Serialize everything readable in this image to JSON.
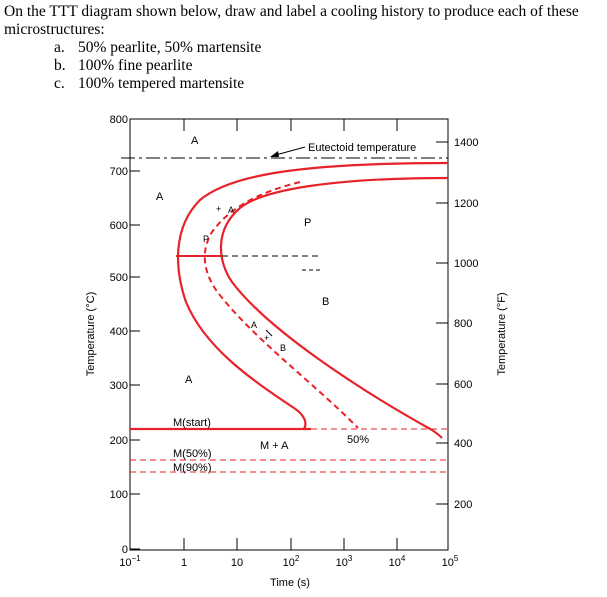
{
  "question": {
    "line1": "On the TTT diagram shown below, draw and label a cooling history to produce each of these",
    "line2": "microstructures:",
    "items": [
      {
        "label": "a.",
        "text": "50% pearlite, 50% martensite"
      },
      {
        "label": "b.",
        "text": "100% fine pearlite"
      },
      {
        "label": "c.",
        "text": "100% tempered martensite"
      }
    ]
  },
  "diagram": {
    "y_left_label": "Temperature (°C)",
    "y_right_label": "Temperature (°F)",
    "x_label": "Time (s)",
    "y_left_ticks": [
      "0",
      "100",
      "200",
      "300",
      "400",
      "500",
      "600",
      "700",
      "800"
    ],
    "y_right_ticks": [
      "200",
      "400",
      "600",
      "800",
      "1000",
      "1200",
      "1400"
    ],
    "x_ticks": [
      {
        "base": "10",
        "exp": "−1"
      },
      {
        "base": "1",
        "exp": ""
      },
      {
        "base": "10",
        "exp": ""
      },
      {
        "base": "10",
        "exp": "2"
      },
      {
        "base": "10",
        "exp": "3"
      },
      {
        "base": "10",
        "exp": "4"
      },
      {
        "base": "10",
        "exp": "5"
      }
    ],
    "labels": {
      "eutectoid": "Eutectoid temperature",
      "A_top": "A",
      "A_left": "A",
      "A_mid": "A",
      "A_dash_top": "A",
      "A_dash_mid": "A",
      "P_dash": "P",
      "P_right": "P",
      "B_right": "B",
      "B_dash": "B",
      "m_start": "M(start)",
      "m_50": "M(50%)",
      "m_90": "M(90%)",
      "m_plus_a": "M + A",
      "pct_50": "50%"
    },
    "colors": {
      "curve": "#e8222a",
      "axis": "#000000",
      "ms_dash": "#e8222a"
    }
  }
}
